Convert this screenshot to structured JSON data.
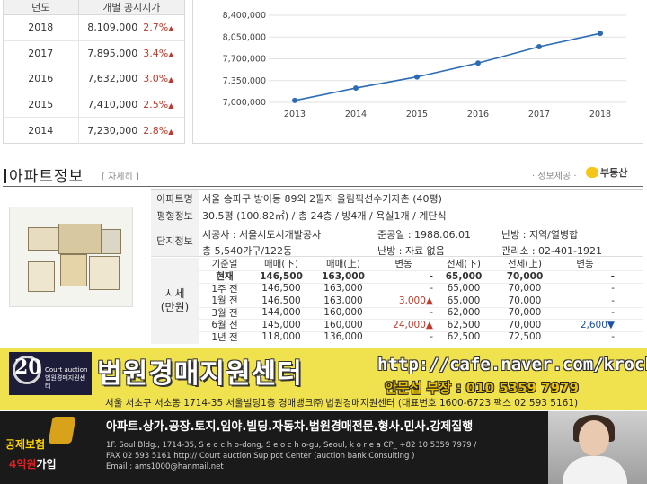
{
  "price_table": {
    "headers": [
      "년도",
      "개별 공시지가"
    ],
    "rows": [
      {
        "year": "2018",
        "price": "8,109,000",
        "rate": "2.7%"
      },
      {
        "year": "2017",
        "price": "7,895,000",
        "rate": "3.4%"
      },
      {
        "year": "2016",
        "price": "7,632,000",
        "rate": "3.0%"
      },
      {
        "year": "2015",
        "price": "7,410,000",
        "rate": "2.5%"
      },
      {
        "year": "2014",
        "price": "7,230,000",
        "rate": "2.8%"
      }
    ],
    "up_symbol": "▲"
  },
  "chart_data": {
    "type": "line",
    "x": [
      "2013",
      "2014",
      "2015",
      "2016",
      "2017",
      "2018"
    ],
    "series": [
      {
        "values": [
          7030000,
          7230000,
          7410000,
          7632000,
          7895000,
          8109000
        ]
      }
    ],
    "y_ticks": [
      "7,000,000",
      "7,350,000",
      "7,700,000",
      "8,050,000",
      "8,400,000"
    ],
    "ylim": [
      7000000,
      8400000
    ],
    "color": "#2b6cb5",
    "grid": true
  },
  "apt": {
    "title": "아파트정보",
    "detail_link": "[ 자세히 ]",
    "provider_label": "· 정보제공 ·",
    "provider_name": "부동산",
    "rows": [
      {
        "label": "아파트명",
        "value": "서울 송파구 방이동 89외 2필지 올림픽선수기자촌 (40평)"
      },
      {
        "label": "평형정보",
        "value": "30.5평 (100.82㎡) / 총 24층 / 방4개 / 욕실1개 / 계단식"
      }
    ],
    "complex": {
      "label": "단지정보",
      "builder": "시공사 : 서울시도시개발공사",
      "completion": "준공일 : 1988.06.01",
      "heating": "난방 : 지역/열병합",
      "households": "총 5,540가구/122동",
      "heating2": "난방 : 자료 없음",
      "office": "관리소 : 02-401-1921"
    },
    "price_label_1": "시세",
    "price_label_2": "(만원)",
    "price_headers": [
      "기준일",
      "매매(下)",
      "매매(上)",
      "변동",
      "전세(下)",
      "전세(上)",
      "변동"
    ],
    "price_rows": [
      [
        "현재",
        "146,500",
        "163,000",
        "-",
        "65,000",
        "70,000",
        "-"
      ],
      [
        "1주 전",
        "146,500",
        "163,000",
        "-",
        "65,000",
        "70,000",
        "-"
      ],
      [
        "1월 전",
        "146,500",
        "163,000",
        "3,000▲",
        "65,000",
        "70,000",
        "-"
      ],
      [
        "3월 전",
        "144,000",
        "160,000",
        "-",
        "62,000",
        "70,000",
        "-"
      ],
      [
        "6월 전",
        "145,000",
        "160,000",
        "24,000▲",
        "62,500",
        "70,000",
        "2,600▼"
      ],
      [
        "1년 전",
        "118,000",
        "136,000",
        "-",
        "62,500",
        "72,500",
        "-"
      ]
    ]
  },
  "banner1": {
    "logo_num": "20",
    "logo_text": "Court auction 법원경매지원센터",
    "title": "법원경매지원센터",
    "url": "http://cafe.naver.com/krocha",
    "contact": "안문섭 부장 : 010 5359 7979",
    "address": "서울 서초구 서초동 1714-35 서울빌딩1층 경매뱅크㈜ 법원경매지원센터 (대표번호 1600-6723 팩스 02 593 5161)"
  },
  "banner2": {
    "insurance1": "공제보험",
    "insurance2_red": "4억원",
    "insurance2_rest": "가입",
    "services": "아파트.상가.공장.토지.임야.빌딩.자동차.법원경매전문.형사.민사.강제집행",
    "en_line1": "1F. Soul Bldg., 1714-35, S e o c h o-dong, S e o c h o-gu, Seoul, k o r e a CP_ +82  10  5359  7979  /",
    "en_line2": "FAX 02  593  5161  http://  Court auction Sup pot Center (auction  bank Consulting )",
    "en_line3": "Email :  ams1000@hanmail.net"
  }
}
